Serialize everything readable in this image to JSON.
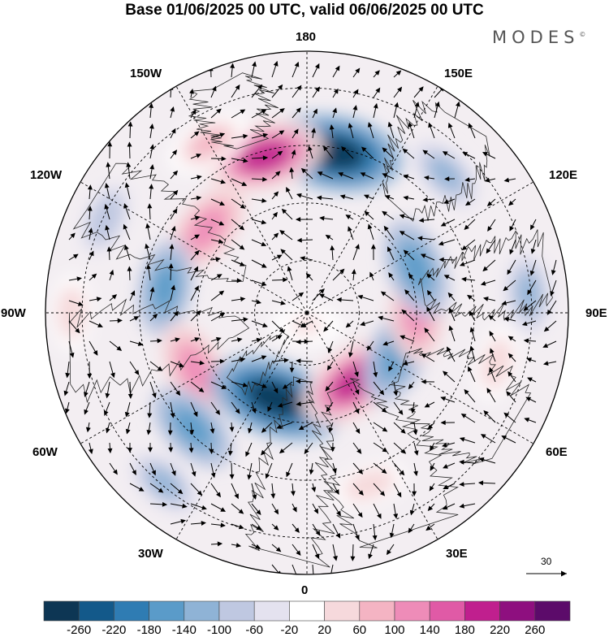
{
  "title": "Base 01/06/2025 00 UTC, valid 06/06/2025 00 UTC",
  "brand": "MODES",
  "brand_mark": "©",
  "longitude_labels": {
    "top": "180",
    "bottom": "0",
    "left": "90W",
    "right": "90E",
    "upper_left": "150W",
    "upper_right": "150E",
    "mid_upper_left": "120W",
    "mid_upper_right": "120E",
    "lower_left": "60W",
    "lower_right": "60E",
    "bottom_left": "30W",
    "bottom_right": "30E"
  },
  "reference_vector": {
    "value": "30"
  },
  "colorbar": {
    "ticks": [
      "-260",
      "-220",
      "-180",
      "-140",
      "-100",
      "-60",
      "-20",
      "20",
      "60",
      "100",
      "140",
      "180",
      "220",
      "260"
    ],
    "colors": [
      "#0d3654",
      "#13598a",
      "#2f7cb3",
      "#5a9bc9",
      "#8fb3d6",
      "#bfc8e1",
      "#e4e2ef",
      "#ffffff",
      "#f6d9dc",
      "#f4b4c3",
      "#ee8cb8",
      "#e05aa6",
      "#c01f8e",
      "#8e0f7f",
      "#5c0b6a"
    ]
  },
  "map": {
    "projection": "north-polar-stereographic",
    "circle_color": "#000000",
    "land_outline_color": "#333333",
    "anomalies": [
      {
        "lon": 170,
        "r": 0.62,
        "value": -250
      },
      {
        "lon": 195,
        "r": 0.62,
        "value": 200
      },
      {
        "lon": 210,
        "r": 0.75,
        "value": 100
      },
      {
        "lon": 230,
        "r": 0.5,
        "value": 140
      },
      {
        "lon": 260,
        "r": 0.55,
        "value": -130
      },
      {
        "lon": 297,
        "r": 0.48,
        "value": 140
      },
      {
        "lon": 315,
        "r": 0.62,
        "value": -140
      },
      {
        "lon": 340,
        "r": 0.35,
        "value": -250
      },
      {
        "lon": 35,
        "r": 0.32,
        "value": 200
      },
      {
        "lon": 65,
        "r": 0.38,
        "value": -150
      },
      {
        "lon": 90,
        "r": 0.42,
        "value": 140
      },
      {
        "lon": 112,
        "r": 0.45,
        "value": -150
      },
      {
        "lon": 135,
        "r": 0.75,
        "value": -90
      },
      {
        "lon": 95,
        "r": 0.85,
        "value": -90
      },
      {
        "lon": 75,
        "r": 0.75,
        "value": 60
      },
      {
        "lon": 20,
        "r": 0.7,
        "value": 60
      },
      {
        "lon": 320,
        "r": 0.85,
        "value": -80
      },
      {
        "lon": 270,
        "r": 0.9,
        "value": 60
      },
      {
        "lon": 245,
        "r": 0.85,
        "value": -60
      },
      {
        "lon": 0,
        "r": 0.05,
        "value": 50
      }
    ]
  }
}
